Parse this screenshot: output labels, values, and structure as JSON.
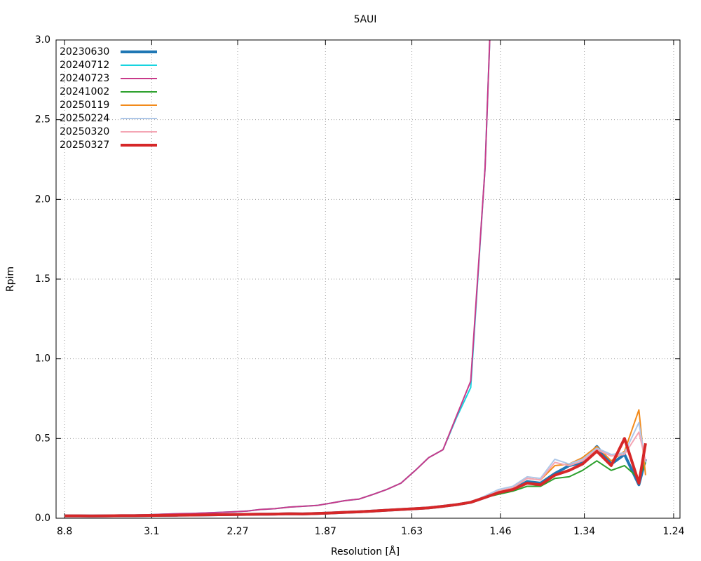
{
  "chart_data": {
    "type": "line",
    "title": "5AUI",
    "x_label": "Resolution [Å]",
    "y_label": "Rpim",
    "x": [
      0.013,
      0.028,
      0.042,
      0.057,
      0.072,
      0.086,
      0.101,
      0.116,
      0.13,
      0.145,
      0.16,
      0.174,
      0.189,
      0.204,
      0.218,
      0.233,
      0.248,
      0.262,
      0.277,
      0.292,
      0.306,
      0.321,
      0.336,
      0.35,
      0.365,
      0.38,
      0.394,
      0.409,
      0.423,
      0.438,
      0.453,
      0.467,
      0.482,
      0.497,
      0.511,
      0.526,
      0.541,
      0.555,
      0.57,
      0.585,
      0.599,
      0.614,
      0.621
    ],
    "series": [
      {
        "name": "20230630",
        "color": "#1f77b4",
        "line_width": 4,
        "values": [
          0.015,
          0.015,
          0.014,
          0.015,
          0.016,
          0.016,
          0.017,
          0.018,
          0.019,
          0.02,
          0.021,
          0.022,
          0.023,
          0.024,
          0.025,
          0.026,
          0.028,
          0.027,
          0.03,
          0.033,
          0.037,
          0.04,
          0.045,
          0.05,
          0.055,
          0.06,
          0.065,
          0.075,
          0.085,
          0.1,
          0.13,
          0.16,
          0.18,
          0.23,
          0.22,
          0.28,
          0.33,
          0.35,
          0.45,
          0.34,
          0.4,
          0.21,
          0.37
        ]
      },
      {
        "name": "20240712",
        "color": "#17d4e0",
        "line_width": 2,
        "values": [
          0.015,
          0.015,
          0.016,
          0.017,
          0.018,
          0.02,
          0.022,
          0.025,
          0.028,
          0.03,
          0.033,
          0.036,
          0.04,
          0.045,
          0.055,
          0.06,
          0.07,
          0.075,
          0.08,
          0.095,
          0.11,
          0.12,
          0.15,
          0.18,
          0.22,
          0.3,
          0.38,
          0.43,
          0.63,
          0.82,
          2.2,
          4.5,
          null,
          null,
          null,
          null,
          null,
          null,
          null,
          null,
          null,
          null,
          null
        ]
      },
      {
        "name": "20240723",
        "color": "#c83a8a",
        "line_width": 2,
        "values": [
          0.015,
          0.015,
          0.016,
          0.017,
          0.018,
          0.02,
          0.022,
          0.025,
          0.028,
          0.03,
          0.033,
          0.036,
          0.04,
          0.045,
          0.055,
          0.06,
          0.07,
          0.075,
          0.08,
          0.095,
          0.11,
          0.12,
          0.15,
          0.18,
          0.22,
          0.3,
          0.38,
          0.43,
          0.64,
          0.86,
          2.2,
          4.5,
          null,
          null,
          null,
          null,
          null,
          null,
          null,
          null,
          null,
          null,
          null
        ]
      },
      {
        "name": "20241002",
        "color": "#2ca02c",
        "line_width": 2,
        "values": [
          0.015,
          0.015,
          0.014,
          0.015,
          0.016,
          0.016,
          0.017,
          0.018,
          0.019,
          0.02,
          0.021,
          0.022,
          0.023,
          0.024,
          0.025,
          0.026,
          0.028,
          0.027,
          0.03,
          0.033,
          0.037,
          0.04,
          0.045,
          0.05,
          0.055,
          0.06,
          0.065,
          0.075,
          0.085,
          0.1,
          0.13,
          0.15,
          0.17,
          0.2,
          0.2,
          0.25,
          0.26,
          0.3,
          0.36,
          0.3,
          0.33,
          0.25,
          0.35
        ]
      },
      {
        "name": "20250119",
        "color": "#f28a1a",
        "line_width": 2,
        "values": [
          0.015,
          0.015,
          0.014,
          0.015,
          0.016,
          0.016,
          0.017,
          0.018,
          0.019,
          0.02,
          0.021,
          0.022,
          0.023,
          0.024,
          0.025,
          0.026,
          0.028,
          0.027,
          0.03,
          0.033,
          0.037,
          0.04,
          0.045,
          0.05,
          0.055,
          0.06,
          0.065,
          0.075,
          0.085,
          0.1,
          0.13,
          0.17,
          0.19,
          0.25,
          0.24,
          0.33,
          0.34,
          0.38,
          0.45,
          0.36,
          0.42,
          0.68,
          0.27
        ]
      },
      {
        "name": "20250224",
        "color": "#aec7e8",
        "line_width": 2,
        "values": [
          0.015,
          0.015,
          0.014,
          0.015,
          0.016,
          0.016,
          0.017,
          0.018,
          0.019,
          0.02,
          0.021,
          0.022,
          0.023,
          0.024,
          0.025,
          0.026,
          0.028,
          0.027,
          0.03,
          0.033,
          0.037,
          0.04,
          0.045,
          0.05,
          0.055,
          0.06,
          0.065,
          0.075,
          0.085,
          0.1,
          0.14,
          0.18,
          0.2,
          0.26,
          0.25,
          0.37,
          0.34,
          0.37,
          0.44,
          0.4,
          0.41,
          0.6,
          0.35
        ]
      },
      {
        "name": "20250320",
        "color": "#f4a6b4",
        "line_width": 2,
        "values": [
          0.015,
          0.015,
          0.014,
          0.015,
          0.016,
          0.016,
          0.017,
          0.018,
          0.019,
          0.02,
          0.021,
          0.022,
          0.023,
          0.024,
          0.025,
          0.026,
          0.028,
          0.027,
          0.03,
          0.033,
          0.037,
          0.04,
          0.045,
          0.05,
          0.055,
          0.06,
          0.065,
          0.075,
          0.085,
          0.1,
          0.13,
          0.17,
          0.19,
          0.25,
          0.24,
          0.35,
          0.33,
          0.36,
          0.43,
          0.39,
          0.4,
          0.54,
          0.36
        ]
      },
      {
        "name": "20250327",
        "color": "#d62728",
        "line_width": 4,
        "values": [
          0.015,
          0.015,
          0.014,
          0.015,
          0.016,
          0.016,
          0.017,
          0.018,
          0.019,
          0.02,
          0.021,
          0.022,
          0.023,
          0.024,
          0.025,
          0.026,
          0.028,
          0.027,
          0.03,
          0.033,
          0.037,
          0.04,
          0.045,
          0.05,
          0.055,
          0.06,
          0.065,
          0.075,
          0.085,
          0.1,
          0.13,
          0.16,
          0.18,
          0.22,
          0.21,
          0.27,
          0.3,
          0.34,
          0.42,
          0.33,
          0.5,
          0.22,
          0.47
        ]
      }
    ],
    "xlim": [
      0.004,
      0.657
    ],
    "xticks": [
      {
        "value": 0.01291,
        "label": "8.8"
      },
      {
        "value": 0.10406,
        "label": "3.1"
      },
      {
        "value": 0.19407,
        "label": "2.27"
      },
      {
        "value": 0.28597,
        "label": "1.87"
      },
      {
        "value": 0.37638,
        "label": "1.63"
      },
      {
        "value": 0.46913,
        "label": "1.46"
      },
      {
        "value": 0.55692,
        "label": "1.34"
      },
      {
        "value": 0.65036,
        "label": "1.24"
      }
    ],
    "ylim": [
      0,
      3
    ],
    "yticks": [
      {
        "value": 0,
        "label": "0.0"
      },
      0.5,
      {
        "value": 1,
        "label": "1.0"
      },
      1.5,
      {
        "value": 2,
        "label": "2.0"
      },
      2.5,
      {
        "value": 3,
        "label": "3.0"
      }
    ],
    "grid": true,
    "legend": "top-left"
  }
}
